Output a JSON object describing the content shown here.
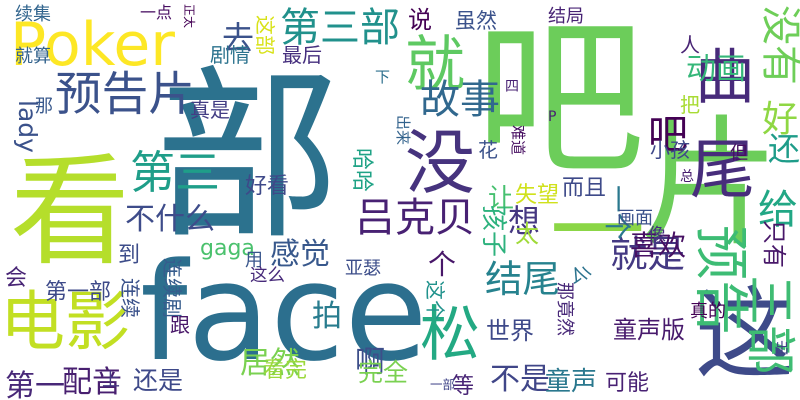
{
  "words": [
    {
      "text": "吧",
      "color": "#6ccd5a"
    },
    {
      "text": "片",
      "color": "#6ccd5a"
    },
    {
      "text": "部",
      "color": "#2c728e"
    },
    {
      "text": "face",
      "color": "#2c6f8e"
    },
    {
      "text": "看",
      "color": "#b5de2b"
    },
    {
      "text": "尾",
      "color": "#472d7b"
    },
    {
      "text": "这",
      "color": "#3e4a89"
    },
    {
      "text": "Poker",
      "color": "#fde725"
    },
    {
      "text": "电影",
      "color": "#c2df23"
    },
    {
      "text": "松",
      "color": "#23a983"
    },
    {
      "text": "就",
      "color": "#5ec962"
    },
    {
      "text": "曲",
      "color": "#472a7a"
    },
    {
      "text": "没",
      "color": "#46337e"
    },
    {
      "text": "三部",
      "color": "#3fbc73"
    },
    {
      "text": "预告",
      "color": "#3dbc74"
    },
    {
      "text": "一",
      "color": "#8bd646"
    },
    {
      "text": "预告片",
      "color": "#3b528b"
    },
    {
      "text": "第三部",
      "color": "#21918c"
    },
    {
      "text": "吕克贝",
      "color": "#482173"
    },
    {
      "text": "第三",
      "color": "#1f9e89"
    },
    {
      "text": "故事",
      "color": "#31688e"
    },
    {
      "text": "结尾",
      "color": "#26828e"
    },
    {
      "text": "就是",
      "color": "#443983"
    },
    {
      "text": "没有",
      "color": "#6ece58"
    },
    {
      "text": "动画",
      "color": "#35b779"
    },
    {
      "text": "还",
      "color": "#1e9c89"
    },
    {
      "text": "好",
      "color": "#8fd744"
    },
    {
      "text": "给",
      "color": "#22a785"
    },
    {
      "text": "想",
      "color": "#453781"
    },
    {
      "text": "一个",
      "color": "#2a788e"
    },
    {
      "text": "不什么",
      "color": "#3e4c8a"
    },
    {
      "text": "吧",
      "color": "#440154"
    },
    {
      "text": "去",
      "color": "#3b528b"
    },
    {
      "text": "感觉",
      "color": "#38588c"
    },
    {
      "text": "个",
      "color": "#481769"
    },
    {
      "text": "喜欢",
      "color": "#471063"
    },
    {
      "text": "好看",
      "color": "#3e4989"
    },
    {
      "text": "啊",
      "color": "#3d4e8a"
    },
    {
      "text": "居然",
      "color": "#7ad151"
    },
    {
      "text": "不是",
      "color": "#404688"
    },
    {
      "text": "童声",
      "color": "#2a788e"
    },
    {
      "text": "拍",
      "color": "#287c8e"
    },
    {
      "text": "配音",
      "color": "#481f70"
    },
    {
      "text": "第一",
      "color": "#482878"
    },
    {
      "text": "还是",
      "color": "#3e4989"
    },
    {
      "text": "完全",
      "color": "#7ad151"
    },
    {
      "text": "看完",
      "color": "#9bd93c"
    },
    {
      "text": "gaga",
      "color": "#4ac16d"
    },
    {
      "text": "太",
      "color": "#a0da39"
    },
    {
      "text": "lady",
      "color": "#3b528b"
    },
    {
      "text": "童声版",
      "color": "#481a6c"
    },
    {
      "text": "世界",
      "color": "#3e4989"
    },
    {
      "text": "第一部",
      "color": "#3e4a89"
    },
    {
      "text": "让",
      "color": "#46c06f"
    },
    {
      "text": "失望",
      "color": "#d0e11c"
    },
    {
      "text": "而且",
      "color": "#3e4a89"
    },
    {
      "text": "孩子",
      "color": "#2db27d"
    },
    {
      "text": "可能",
      "color": "#482173"
    },
    {
      "text": "到",
      "color": "#3d4d8a"
    },
    {
      "text": "会",
      "color": "#482575"
    },
    {
      "text": "等",
      "color": "#482475"
    },
    {
      "text": "说",
      "color": "#440154"
    },
    {
      "text": "虽然",
      "color": "#3b528b"
    },
    {
      "text": "结局",
      "color": "#482374"
    },
    {
      "text": "最后",
      "color": "#462f7e"
    },
    {
      "text": "剧情",
      "color": "#2c738e"
    },
    {
      "text": "真是",
      "color": "#433d84"
    },
    {
      "text": "这部",
      "color": "#d8e219"
    },
    {
      "text": "续集",
      "color": "#32658e"
    },
    {
      "text": "一点",
      "color": "#470e61"
    },
    {
      "text": "正太",
      "color": "#440154"
    },
    {
      "text": "就算",
      "color": "#33638d"
    },
    {
      "text": "那",
      "color": "#38588c"
    },
    {
      "text": "人",
      "color": "#482374"
    },
    {
      "text": "但",
      "color": "#470e61"
    },
    {
      "text": "把",
      "color": "#a8db34"
    },
    {
      "text": "只有",
      "color": "#481769"
    },
    {
      "text": "小孩",
      "color": "#3f4889"
    },
    {
      "text": "画面",
      "color": "#3b528b"
    },
    {
      "text": "像",
      "color": "#46307e"
    },
    {
      "text": "出来",
      "color": "#33638d"
    },
    {
      "text": "下",
      "color": "#2d708e"
    },
    {
      "text": "哈哈",
      "color": "#20a386"
    },
    {
      "text": "花",
      "color": "#3b528b"
    },
    {
      "text": "用",
      "color": "#39568c"
    },
    {
      "text": "这么",
      "color": "#472a7a"
    },
    {
      "text": "亚瑟",
      "color": "#3d4e8a"
    },
    {
      "text": "连续剧",
      "color": "#365c8d"
    },
    {
      "text": "连续",
      "color": "#3b528b"
    },
    {
      "text": "跟",
      "color": "#481668"
    },
    {
      "text": "上",
      "color": "#453882"
    },
    {
      "text": "一部",
      "color": "#404588"
    },
    {
      "text": "这个",
      "color": "#20928c"
    },
    {
      "text": "那竟然",
      "color": "#482878"
    },
    {
      "text": "真的",
      "color": "#440154"
    },
    {
      "text": "么",
      "color": "#2c738e"
    },
    {
      "text": "难道",
      "color": "#470e61"
    },
    {
      "text": "P",
      "color": "#482071"
    },
    {
      "text": "四",
      "color": "#482173"
    },
    {
      "text": "总",
      "color": "#481d6f"
    },
    {
      "text": "出",
      "color": "#424186"
    }
  ]
}
